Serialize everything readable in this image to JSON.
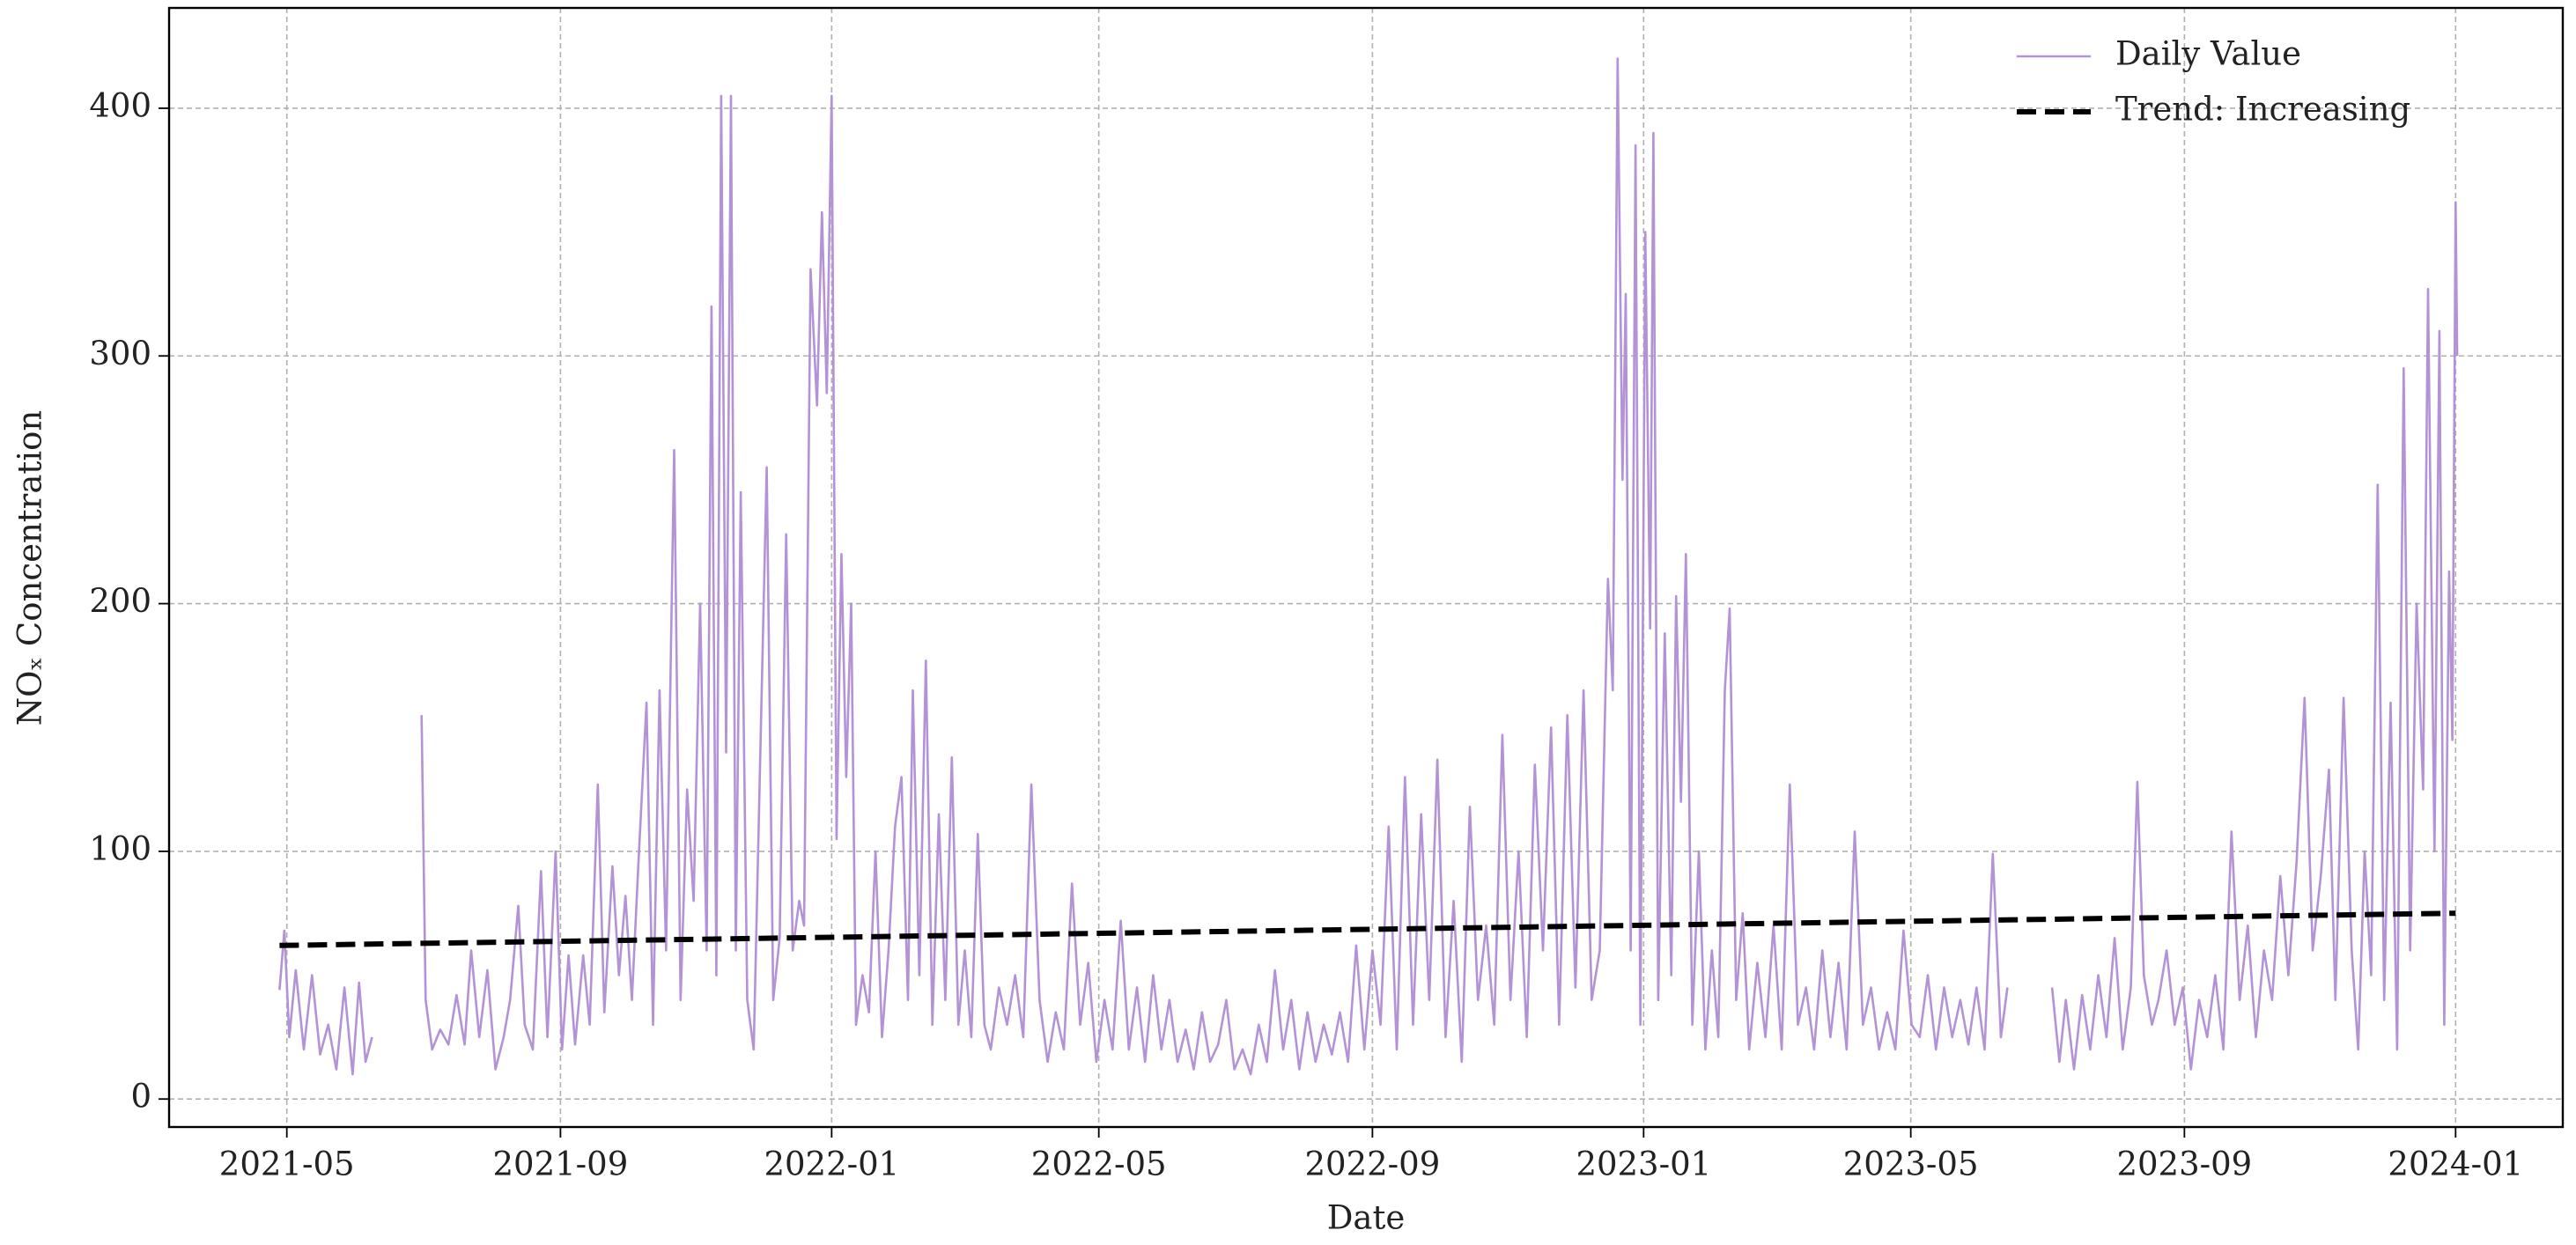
{
  "chart_data": {
    "type": "line",
    "x_label": "Date",
    "y_label": "NOₓ Concentration",
    "xlim": [
      2021.184,
      2024.132
    ],
    "ylim": [
      -11.3,
      440.5
    ],
    "xticks": [
      {
        "value": 2021.329,
        "label": "2021-05"
      },
      {
        "value": 2021.666,
        "label": "2021-09"
      },
      {
        "value": 2022.0,
        "label": "2022-01"
      },
      {
        "value": 2022.329,
        "label": "2022-05"
      },
      {
        "value": 2022.666,
        "label": "2022-09"
      },
      {
        "value": 2023.0,
        "label": "2023-01"
      },
      {
        "value": 2023.329,
        "label": "2023-05"
      },
      {
        "value": 2023.666,
        "label": "2023-09"
      },
      {
        "value": 2024.0,
        "label": "2024-01"
      }
    ],
    "yticks": [
      0,
      100,
      200,
      300,
      400
    ],
    "grid": true,
    "legend": "upper right",
    "series": [
      {
        "name": "Daily Value",
        "color": "#b492d6",
        "style": "solid",
        "x": [
          2021.32,
          2021.326,
          2021.332,
          2021.34,
          2021.35,
          2021.36,
          2021.37,
          2021.38,
          2021.39,
          2021.4,
          2021.41,
          2021.418,
          2021.426,
          2021.434,
          2021.46,
          2021.495,
          2021.5,
          2021.508,
          2021.518,
          2021.528,
          2021.538,
          2021.548,
          2021.556,
          2021.566,
          2021.576,
          2021.586,
          2021.596,
          2021.604,
          2021.614,
          2021.622,
          2021.632,
          2021.642,
          2021.65,
          2021.66,
          2021.668,
          2021.676,
          2021.684,
          2021.694,
          2021.702,
          2021.712,
          2021.72,
          2021.73,
          2021.738,
          2021.746,
          2021.754,
          2021.762,
          2021.772,
          2021.78,
          2021.788,
          2021.796,
          2021.806,
          2021.814,
          2021.822,
          2021.83,
          2021.838,
          2021.846,
          2021.852,
          2021.858,
          2021.864,
          2021.87,
          2021.876,
          2021.882,
          2021.888,
          2021.896,
          2021.904,
          2021.92,
          2021.928,
          2021.936,
          2021.944,
          2021.952,
          2021.96,
          2021.966,
          2021.974,
          2021.982,
          2021.988,
          2021.994,
          2022,
          2022.006,
          2022.012,
          2022.018,
          2022.024,
          2022.03,
          2022.038,
          2022.046,
          2022.054,
          2022.062,
          2022.07,
          2022.078,
          2022.086,
          2022.094,
          2022.1,
          2022.108,
          2022.116,
          2022.124,
          2022.132,
          2022.14,
          2022.148,
          2022.156,
          2022.164,
          2022.172,
          2022.18,
          2022.188,
          2022.196,
          2022.206,
          2022.216,
          2022.226,
          2022.236,
          2022.246,
          2022.256,
          2022.266,
          2022.276,
          2022.286,
          2022.296,
          2022.306,
          2022.316,
          2022.326,
          2022.336,
          2022.346,
          2022.356,
          2022.366,
          2022.376,
          2022.386,
          2022.396,
          2022.406,
          2022.416,
          2022.426,
          2022.436,
          2022.446,
          2022.456,
          2022.466,
          2022.476,
          2022.486,
          2022.496,
          2022.506,
          2022.516,
          2022.526,
          2022.536,
          2022.546,
          2022.556,
          2022.566,
          2022.576,
          2022.586,
          2022.596,
          2022.606,
          2022.616,
          2022.626,
          2022.636,
          2022.646,
          2022.656,
          2022.666,
          2022.676,
          2022.686,
          2022.696,
          2022.706,
          2022.716,
          2022.726,
          2022.736,
          2022.746,
          2022.756,
          2022.766,
          2022.776,
          2022.786,
          2022.796,
          2022.806,
          2022.816,
          2022.826,
          2022.836,
          2022.846,
          2022.856,
          2022.866,
          2022.876,
          2022.886,
          2022.896,
          2022.906,
          2022.916,
          2022.926,
          2022.936,
          2022.946,
          2022.956,
          2022.962,
          2022.968,
          2022.974,
          2022.978,
          2022.984,
          2022.99,
          2022.996,
          2023.002,
          2023.008,
          2023.012,
          2023.018,
          2023.026,
          2023.034,
          2023.04,
          2023.046,
          2023.052,
          2023.06,
          2023.068,
          2023.076,
          2023.084,
          2023.092,
          2023.1,
          2023.106,
          2023.114,
          2023.122,
          2023.13,
          2023.14,
          2023.15,
          2023.16,
          2023.17,
          2023.18,
          2023.19,
          2023.2,
          2023.21,
          2023.22,
          2023.23,
          2023.24,
          2023.25,
          2023.26,
          2023.27,
          2023.28,
          2023.29,
          2023.3,
          2023.31,
          2023.32,
          2023.33,
          2023.34,
          2023.35,
          2023.36,
          2023.37,
          2023.38,
          2023.39,
          2023.4,
          2023.41,
          2023.42,
          2023.43,
          2023.44,
          2023.448,
          2023.475,
          2023.503,
          2023.512,
          2023.52,
          2023.53,
          2023.54,
          2023.55,
          2023.56,
          2023.57,
          2023.58,
          2023.59,
          2023.6,
          2023.608,
          2023.616,
          2023.626,
          2023.634,
          2023.644,
          2023.654,
          2023.664,
          2023.674,
          2023.684,
          2023.694,
          2023.704,
          2023.714,
          2023.724,
          2023.734,
          2023.744,
          2023.754,
          2023.764,
          2023.774,
          2023.784,
          2023.794,
          2023.804,
          2023.814,
          2023.824,
          2023.834,
          2023.844,
          2023.852,
          2023.862,
          2023.872,
          2023.88,
          2023.888,
          2023.896,
          2023.904,
          2023.912,
          2023.92,
          2023.928,
          2023.936,
          2023.944,
          2023.952,
          2023.96,
          2023.966,
          2023.974,
          2023.98,
          2023.986,
          2023.992,
          2023.996,
          2024,
          2024.002
        ],
        "values": [
          44,
          68,
          25,
          52,
          20,
          50,
          18,
          30,
          12,
          45,
          10,
          47,
          15,
          25,
          null,
          155,
          40,
          20,
          28,
          22,
          42,
          22,
          60,
          25,
          52,
          12,
          25,
          40,
          78,
          30,
          20,
          92,
          25,
          100,
          20,
          58,
          22,
          58,
          30,
          127,
          35,
          94,
          50,
          82,
          40,
          95,
          160,
          30,
          165,
          60,
          262,
          40,
          125,
          80,
          200,
          60,
          320,
          50,
          405,
          140,
          405,
          60,
          245,
          40,
          20,
          255,
          40,
          65,
          228,
          60,
          80,
          70,
          335,
          280,
          358,
          285,
          405,
          105,
          220,
          130,
          200,
          30,
          50,
          35,
          100,
          25,
          60,
          110,
          130,
          40,
          165,
          50,
          177,
          30,
          115,
          40,
          138,
          30,
          60,
          25,
          107,
          30,
          20,
          45,
          30,
          50,
          25,
          127,
          40,
          15,
          35,
          20,
          87,
          30,
          55,
          15,
          40,
          20,
          72,
          20,
          45,
          15,
          50,
          20,
          40,
          15,
          28,
          12,
          35,
          15,
          22,
          40,
          12,
          20,
          10,
          30,
          15,
          52,
          20,
          40,
          12,
          35,
          15,
          30,
          18,
          35,
          15,
          62,
          20,
          60,
          30,
          110,
          20,
          130,
          30,
          115,
          40,
          137,
          25,
          80,
          15,
          118,
          40,
          70,
          30,
          147,
          40,
          100,
          25,
          135,
          60,
          150,
          30,
          155,
          45,
          165,
          40,
          60,
          210,
          165,
          420,
          250,
          325,
          60,
          385,
          30,
          350,
          190,
          390,
          40,
          188,
          50,
          203,
          120,
          220,
          30,
          100,
          20,
          60,
          25,
          165,
          198,
          40,
          75,
          20,
          55,
          25,
          70,
          20,
          127,
          30,
          45,
          20,
          60,
          25,
          55,
          20,
          108,
          30,
          45,
          20,
          35,
          20,
          68,
          30,
          25,
          50,
          20,
          45,
          25,
          40,
          22,
          45,
          20,
          99,
          25,
          45,
          null,
          45,
          15,
          40,
          12,
          42,
          20,
          50,
          25,
          65,
          20,
          45,
          128,
          50,
          30,
          40,
          60,
          30,
          45,
          12,
          40,
          25,
          50,
          20,
          108,
          40,
          70,
          25,
          60,
          40,
          90,
          50,
          95,
          162,
          60,
          90,
          133,
          40,
          162,
          60,
          20,
          100,
          50,
          248,
          40,
          160,
          20,
          295,
          60,
          200,
          125,
          327,
          100,
          310,
          30,
          213,
          145,
          362,
          300
        ]
      },
      {
        "name": "Trend: Increasing",
        "color": "#000000",
        "style": "dashed",
        "x": [
          2021.32,
          2024.0
        ],
        "values": [
          62,
          75
        ]
      }
    ]
  }
}
